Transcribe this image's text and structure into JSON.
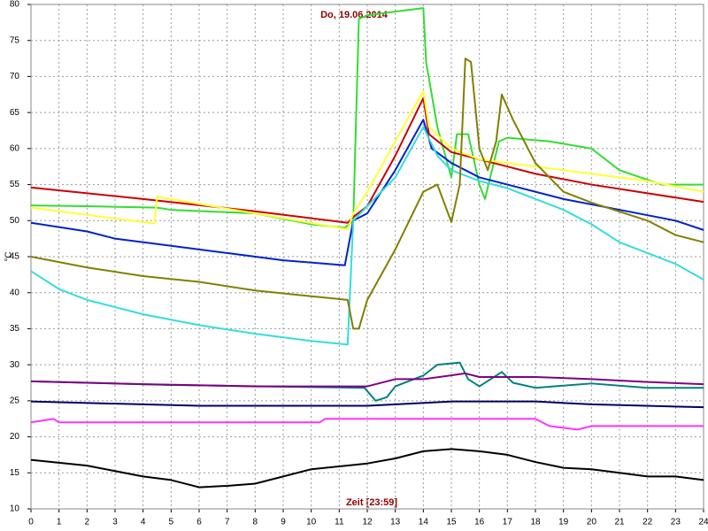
{
  "chart_data": {
    "type": "line",
    "title": "Do, 19.06.2014",
    "xlabel": "Zeit [23:59]",
    "ylabel": "°C",
    "xlim": [
      0,
      24
    ],
    "ylim": [
      10,
      80
    ],
    "xticks": [
      0,
      1,
      2,
      3,
      4,
      5,
      6,
      7,
      8,
      9,
      10,
      11,
      12,
      13,
      14,
      15,
      16,
      17,
      18,
      19,
      20,
      21,
      22,
      23,
      24
    ],
    "yticks": [
      10,
      15,
      20,
      25,
      30,
      35,
      40,
      45,
      50,
      55,
      60,
      65,
      70,
      75,
      80
    ],
    "grid": true,
    "series": [
      {
        "color": "#33dd33",
        "x": [
          0,
          2,
          4.5,
          5,
          8,
          10,
          11.2,
          11.5,
          11.7,
          12,
          13,
          14,
          14.1,
          14.5,
          15,
          15.2,
          15.6,
          16,
          16.2,
          16.7,
          17,
          18.5,
          20,
          21,
          22.5,
          24
        ],
        "values": [
          52.1,
          52,
          51.8,
          51.5,
          51,
          49.5,
          49,
          50,
          78,
          78.5,
          79,
          79.5,
          72,
          63,
          56,
          62,
          62,
          55,
          53,
          61,
          61.5,
          61,
          60,
          57,
          55,
          55
        ]
      },
      {
        "color": "#cc0000",
        "x": [
          0,
          4,
          8,
          11.3,
          11.5,
          12,
          13,
          14,
          14.2,
          15,
          16,
          17,
          18,
          20,
          22,
          24
        ],
        "values": [
          54.6,
          53,
          51.3,
          49.7,
          50.5,
          52,
          59,
          67,
          62,
          59.5,
          58.5,
          57.5,
          56.5,
          55,
          53.8,
          52.6
        ]
      },
      {
        "color": "#ffff33",
        "x": [
          0,
          4.4,
          4.5,
          8,
          11.3,
          11.5,
          12,
          13,
          14,
          14.2,
          15,
          16,
          18,
          20,
          22,
          24
        ],
        "values": [
          51.8,
          49.6,
          53.3,
          51,
          48.8,
          51,
          54,
          61,
          68,
          63,
          60,
          58.5,
          57.5,
          56.5,
          55.5,
          54
        ]
      },
      {
        "color": "#0022cc",
        "x": [
          0,
          2,
          3,
          5,
          7,
          9,
          11.2,
          11.5,
          12,
          13,
          14,
          14.3,
          15,
          16,
          17,
          19,
          21,
          23,
          24
        ],
        "values": [
          49.7,
          48.5,
          47.5,
          46.5,
          45.5,
          44.5,
          43.8,
          50,
          51,
          57,
          64,
          60,
          58,
          56,
          55,
          53,
          51.5,
          50,
          48.7
        ]
      },
      {
        "color": "#33dddd",
        "x": [
          0,
          1,
          2,
          4,
          6,
          8,
          10,
          11.3,
          11.5,
          12,
          13,
          14,
          14.5,
          15,
          16,
          17,
          18,
          19,
          20,
          21,
          22,
          23,
          24
        ],
        "values": [
          43,
          40.5,
          39,
          37,
          35.5,
          34.3,
          33.3,
          32.8,
          50,
          52,
          56,
          63,
          59,
          57,
          55.5,
          54.5,
          53,
          51.5,
          49.5,
          47,
          45.5,
          44,
          41.8
        ]
      },
      {
        "color": "#808000",
        "x": [
          0,
          2,
          4,
          6,
          8,
          10,
          11.3,
          11.5,
          11.7,
          12,
          13,
          14,
          14.5,
          15,
          15.3,
          15.5,
          15.7,
          16,
          16.3,
          16.6,
          16.8,
          17.2,
          18,
          19,
          20,
          22,
          23,
          24
        ],
        "values": [
          45,
          43.5,
          42.3,
          41.5,
          40.3,
          39.5,
          39,
          35,
          35,
          39,
          46,
          54,
          55,
          49.8,
          55,
          72.5,
          72,
          60,
          57,
          61,
          67.5,
          64,
          58,
          54,
          52.5,
          50,
          48,
          47
        ]
      },
      {
        "color": "#008080",
        "x": [
          0,
          5,
          10,
          11.9,
          12.3,
          12.7,
          13,
          14,
          14.5,
          15.3,
          15.6,
          16,
          16.8,
          17.2,
          18,
          20,
          22,
          24
        ],
        "values": [
          27.7,
          27.2,
          26.9,
          26.8,
          25,
          25.5,
          27,
          28.5,
          30,
          30.3,
          28,
          27,
          29,
          27.5,
          26.8,
          27.4,
          26.8,
          26.8
        ]
      },
      {
        "color": "#800080",
        "x": [
          0,
          4,
          8,
          12,
          13,
          14,
          15.5,
          16,
          18,
          20,
          22,
          24
        ],
        "values": [
          27.7,
          27.3,
          27,
          27,
          28,
          28,
          28.8,
          28.3,
          28.3,
          28,
          27.6,
          27.3
        ]
      },
      {
        "color": "#000066",
        "x": [
          0,
          6,
          12,
          15,
          18,
          20,
          24
        ],
        "values": [
          24.9,
          24.3,
          24.3,
          24.9,
          24.9,
          24.5,
          24.1
        ]
      },
      {
        "color": "#ff33ff",
        "x": [
          0,
          0.8,
          1,
          10.3,
          10.5,
          18,
          18.5,
          19.5,
          20,
          24
        ],
        "values": [
          22,
          22.5,
          22,
          22,
          22.5,
          22.5,
          21.5,
          21,
          21.5,
          21.5
        ]
      },
      {
        "color": "#000000",
        "x": [
          0,
          2,
          4,
          5,
          6,
          7,
          8,
          9,
          10,
          12,
          13,
          14,
          15,
          16,
          17,
          18,
          19,
          20,
          21,
          22,
          23,
          24
        ],
        "values": [
          16.8,
          16,
          14.5,
          14,
          13,
          13.2,
          13.5,
          14.5,
          15.5,
          16.3,
          17,
          18,
          18.3,
          18,
          17.5,
          16.5,
          15.7,
          15.5,
          15,
          14.5,
          14.5,
          14
        ]
      }
    ]
  }
}
